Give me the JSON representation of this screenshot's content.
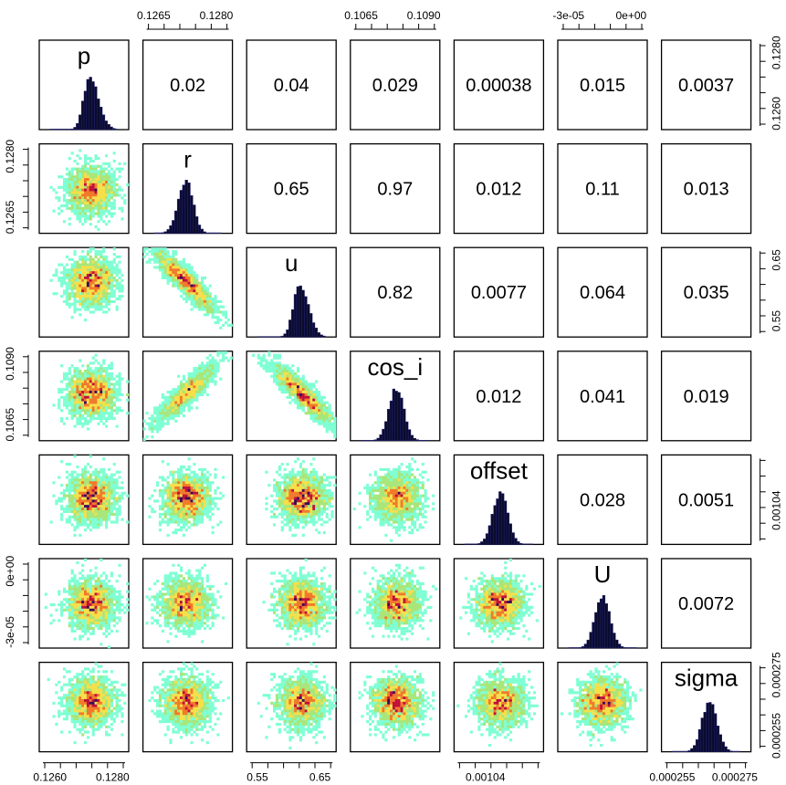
{
  "chart_data": {
    "type": "scatter-matrix",
    "variables": [
      "p",
      "r",
      "u",
      "cos_i",
      "offset",
      "U",
      "sigma"
    ],
    "correlations": [
      {
        "row": 0,
        "col": 1,
        "label": "0.02"
      },
      {
        "row": 0,
        "col": 2,
        "label": "0.04"
      },
      {
        "row": 0,
        "col": 3,
        "label": "0.029"
      },
      {
        "row": 0,
        "col": 4,
        "label": "0.00038"
      },
      {
        "row": 0,
        "col": 5,
        "label": "0.015"
      },
      {
        "row": 0,
        "col": 6,
        "label": "0.0037"
      },
      {
        "row": 1,
        "col": 2,
        "label": "0.65"
      },
      {
        "row": 1,
        "col": 3,
        "label": "0.97"
      },
      {
        "row": 1,
        "col": 4,
        "label": "0.012"
      },
      {
        "row": 1,
        "col": 5,
        "label": "0.11"
      },
      {
        "row": 1,
        "col": 6,
        "label": "0.013"
      },
      {
        "row": 2,
        "col": 3,
        "label": "0.82"
      },
      {
        "row": 2,
        "col": 4,
        "label": "0.0077"
      },
      {
        "row": 2,
        "col": 5,
        "label": "0.064"
      },
      {
        "row": 2,
        "col": 6,
        "label": "0.035"
      },
      {
        "row": 3,
        "col": 4,
        "label": "0.012"
      },
      {
        "row": 3,
        "col": 5,
        "label": "0.041"
      },
      {
        "row": 3,
        "col": 6,
        "label": "0.019"
      },
      {
        "row": 4,
        "col": 5,
        "label": "0.028"
      },
      {
        "row": 4,
        "col": 6,
        "label": "0.0051"
      },
      {
        "row": 5,
        "col": 6,
        "label": "0.0072"
      }
    ],
    "scatter_correlation_sign": [
      [
        0,
        0,
        0,
        0,
        0,
        0,
        0
      ],
      [
        0,
        0,
        0,
        0,
        0,
        0,
        0
      ],
      [
        0,
        -1,
        0,
        0,
        0,
        0,
        0
      ],
      [
        0,
        1,
        -1,
        0,
        0,
        0,
        0
      ],
      [
        0,
        0,
        0,
        0,
        0,
        0,
        0
      ],
      [
        0,
        0,
        0,
        0,
        0,
        0,
        0
      ],
      [
        0,
        0,
        0,
        0,
        0,
        0,
        0
      ]
    ],
    "histogram_center_fraction": [
      0.58,
      0.48,
      0.62,
      0.52,
      0.52,
      0.5,
      0.55
    ],
    "histogram_skew": [
      -0.6,
      0.2,
      -0.5,
      0.0,
      0.0,
      0.0,
      0.0
    ],
    "axes": {
      "top": [
        {
          "col": 1,
          "ticks": [
            "0.1265",
            "0.1280"
          ]
        },
        {
          "col": 3,
          "ticks": [
            "0.1065",
            "0.1090"
          ]
        },
        {
          "col": 5,
          "ticks": [
            "-3e-05",
            "0e+00"
          ]
        }
      ],
      "bottom": [
        {
          "col": 0,
          "ticks": [
            "0.1260",
            "0.1280"
          ]
        },
        {
          "col": 2,
          "ticks": [
            "0.55",
            "0.65"
          ]
        },
        {
          "col": 4,
          "ticks": [
            "0.00104"
          ]
        },
        {
          "col": 6,
          "ticks": [
            "0.000255",
            "0.000275"
          ]
        }
      ],
      "left": [
        {
          "row": 1,
          "ticks": [
            "0.1265",
            "0.1280"
          ]
        },
        {
          "row": 3,
          "ticks": [
            "0.1065",
            "0.1090"
          ]
        },
        {
          "row": 5,
          "ticks": [
            "-3e-05",
            "0e+00"
          ]
        }
      ],
      "right": [
        {
          "row": 0,
          "ticks": [
            "0.1260",
            "0.1280"
          ]
        },
        {
          "row": 2,
          "ticks": [
            "0.55",
            "0.65"
          ]
        },
        {
          "row": 4,
          "ticks": [
            "0.00104"
          ]
        },
        {
          "row": 6,
          "ticks": [
            "0.000255",
            "0.000275"
          ]
        }
      ]
    },
    "colors": {
      "density_low": "#7fffd4",
      "density_mid_low": "#a8e67a",
      "density_mid": "#f5e04a",
      "density_high": "#f07a2a",
      "density_peak": "#c0103a",
      "density_max": "#3a0a5a",
      "histogram_fill": "#0b0b2e",
      "histogram_edge": "#23237a"
    }
  }
}
